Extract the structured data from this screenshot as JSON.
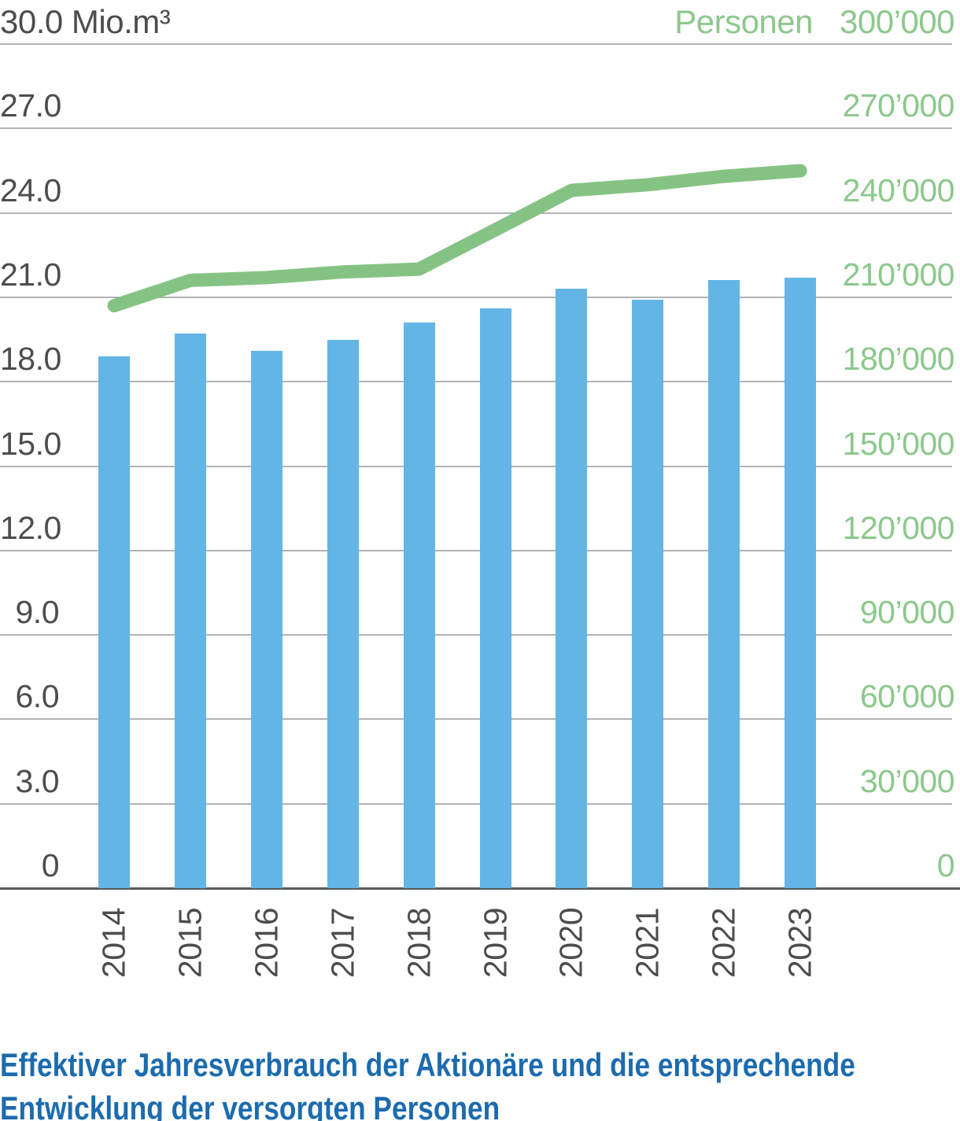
{
  "header": {
    "left_label": "30.0 Mio.m³",
    "right_label": "Personen",
    "right_value": "300’000"
  },
  "caption": {
    "line1": "Effektiver Jahresverbrauch der Aktionäre und die entsprechende",
    "line2": "Entwicklung der versorgten Personen"
  },
  "colors": {
    "bar_blue": "#63b5e6",
    "line_green": "#85c385",
    "right_axis_green": "#8cc88c",
    "axis_text_gray": "#4d4d4d",
    "gridline_gray": "#b3b3b3",
    "baseline_gray": "#58595b",
    "caption_blue": "#1c6bae"
  },
  "chart_data": {
    "type": "bar",
    "subtype": "bar-and-line-combo",
    "categories": [
      "2014",
      "2015",
      "2016",
      "2017",
      "2018",
      "2019",
      "2020",
      "2021",
      "2022",
      "2023"
    ],
    "series": [
      {
        "name": "Effektiver Jahresverbrauch der Aktionäre",
        "type": "bar",
        "axis": "left",
        "unit": "Mio.m³",
        "color": "#63b5e6",
        "values": [
          18.9,
          19.7,
          19.1,
          19.5,
          20.1,
          20.6,
          21.3,
          20.9,
          21.6,
          21.7
        ]
      },
      {
        "name": "Versorgte Personen",
        "type": "line",
        "axis": "right",
        "unit": "Personen",
        "color": "#85c385",
        "values": [
          207000,
          216000,
          217000,
          219000,
          220000,
          234000,
          248000,
          250000,
          253000,
          255000
        ]
      }
    ],
    "left_axis": {
      "top_label": "30.0 Mio.m³",
      "min": 0,
      "max": 30,
      "step": 3,
      "tick_values": [
        27,
        24,
        21,
        18,
        15,
        12,
        9,
        6,
        3,
        0
      ],
      "tick_labels": [
        "27.0",
        "24.0",
        "21.0",
        "18.0",
        "15.0",
        "12.0",
        "9.0",
        "6.0",
        "3.0",
        "0"
      ]
    },
    "right_axis": {
      "top_label": "Personen 300’000",
      "min": 0,
      "max": 300000,
      "step": 30000,
      "tick_values": [
        270000,
        240000,
        210000,
        180000,
        150000,
        120000,
        90000,
        60000,
        30000,
        0
      ],
      "tick_labels": [
        "270’000",
        "240’000",
        "210’000",
        "180’000",
        "150’000",
        "120’000",
        "90’000",
        "60’000",
        "30’000",
        "0"
      ]
    },
    "grid": true,
    "legend_position": "none",
    "title": "Effektiver Jahresverbrauch der Aktionäre und die entsprechende Entwicklung der versorgten Personen"
  }
}
